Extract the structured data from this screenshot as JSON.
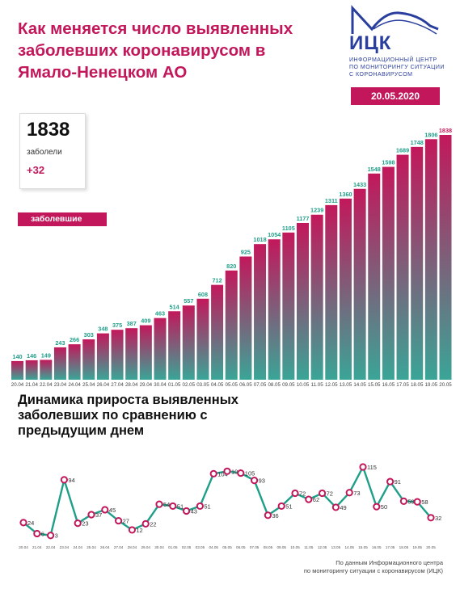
{
  "header": {
    "title": "Как меняется число выявленных\nзаболевших коронавирусом в\nЯмало-Ненецком АО",
    "logo_name": "ИЦК",
    "logo_subtitle": "ИНФОРМАЦИОННЫЙ ЦЕНТР\nПО МОНИТОРИНГУ СИТУАЦИИ\nС КОРОНАВИРУСОМ",
    "date": "20.05.2020"
  },
  "summary": {
    "total": "1838",
    "label": "заболели",
    "increase": "+32"
  },
  "legend": {
    "label": "заболевшие"
  },
  "line_title": "Динамика прироста выявленных\nзаболевших по сравнению с\nпредыдущим днем",
  "footer": "По данным Информационного центра\nпо мониторингу ситуации с коронавирусом (ИЦК)",
  "colors": {
    "brand": "#c2185b",
    "bar_top": "#c2185b",
    "bar_bottom": "#3aa597",
    "line": "#1f9e89",
    "marker": "#c2185b",
    "logo": "#2a3f9d"
  },
  "chart_data": [
    {
      "type": "bar",
      "title": "Как меняется число выявленных заболевших коронавирусом в Ямало-Ненецком АО",
      "categories": [
        "20.04",
        "21.04",
        "22.04",
        "23.04",
        "24.04",
        "25.04",
        "26.04",
        "27.04",
        "28.04",
        "29.04",
        "30.04",
        "01.05",
        "02.05",
        "03.05",
        "04.05",
        "05.05",
        "06.05",
        "07.05",
        "08.05",
        "09.05",
        "10.05",
        "11.05",
        "12.05",
        "13.05",
        "14.05",
        "15.05",
        "16.05",
        "17.05",
        "18.05",
        "19.05",
        "20.05"
      ],
      "series": [
        {
          "name": "заболевшие",
          "values": [
            140,
            146,
            149,
            243,
            266,
            303,
            348,
            375,
            387,
            409,
            463,
            514,
            557,
            608,
            712,
            820,
            925,
            1018,
            1054,
            1105,
            1177,
            1239,
            1311,
            1360,
            1433,
            1548,
            1598,
            1689,
            1748,
            1806,
            1838
          ]
        }
      ],
      "ylim": [
        0,
        1838
      ],
      "grid": false,
      "legend": "left"
    },
    {
      "type": "line",
      "title": "Динамика прироста выявленных заболевших по сравнению с предыдущим днем",
      "categories": [
        "20.04",
        "21.04",
        "22.04",
        "23.04",
        "24.04",
        "25.04",
        "26.04",
        "27.04",
        "28.04",
        "29.04",
        "30.04",
        "01.05",
        "02.05",
        "03.05",
        "04.05",
        "05.05",
        "06.05",
        "07.05",
        "08.05",
        "09.05",
        "10.05",
        "11.05",
        "12.05",
        "13.05",
        "14.05",
        "15.05",
        "16.05",
        "17.05",
        "18.05",
        "19.05",
        "20.05"
      ],
      "x_ticks": [
        "20.04",
        "21.04",
        "22.04",
        "23.04",
        "24.04",
        "25.04",
        "26.04",
        "27.04",
        "28.04",
        "29.04",
        "30.04",
        "01.05",
        "02.05",
        "03.05",
        "04.05",
        "05.05",
        "06.05",
        "07.05",
        "08.05",
        "09.05",
        "10.05",
        "11.05",
        "12.05",
        "13.05",
        "14.05",
        "15.05",
        "16.05",
        "17.05",
        "18.05",
        "19.05",
        "20.05"
      ],
      "series": [
        {
          "values": [
            24,
            6,
            3,
            94,
            23,
            37,
            45,
            27,
            12,
            22,
            54,
            51,
            43,
            51,
            104,
            108,
            105,
            93,
            36,
            51,
            72,
            62,
            72,
            49,
            73,
            115,
            50,
            91,
            59,
            58,
            32
          ]
        }
      ],
      "ylim": [
        0,
        115
      ],
      "grid": false
    }
  ]
}
